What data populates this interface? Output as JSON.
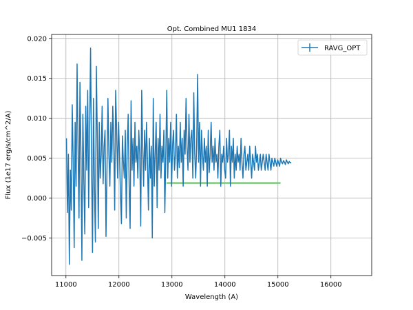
{
  "chart_data": {
    "type": "line",
    "title": "Opt. Combined MU1 1834",
    "xlabel": "Wavelength (A)",
    "ylabel": "Flux (1e17 erg/s/cm^2/A)",
    "xlim": [
      10730,
      16770
    ],
    "ylim": [
      -0.0097,
      0.0205
    ],
    "xticks": [
      11000,
      12000,
      13000,
      14000,
      15000,
      16000
    ],
    "yticks": [
      -0.005,
      0.0,
      0.005,
      0.01,
      0.015,
      0.02
    ],
    "xtick_labels": [
      "11000",
      "12000",
      "13000",
      "14000",
      "15000",
      "16000"
    ],
    "ytick_labels": [
      "−0.005",
      "0.000",
      "0.005",
      "0.010",
      "0.015",
      "0.020"
    ],
    "grid": true,
    "legend_position": "top-right",
    "series": [
      {
        "name": "RAVG_OPT",
        "color": "#1f77b4",
        "x_start": 11010,
        "x_step": 18.2,
        "values": [
          0.0075,
          -0.0018,
          0.0055,
          -0.0083,
          0.0035,
          -0.0015,
          0.0117,
          0.0042,
          -0.0062,
          0.0095,
          0.0015,
          0.0168,
          0.0065,
          -0.0025,
          0.0145,
          0.0055,
          -0.0078,
          0.0105,
          0.0025,
          -0.0045,
          0.0115,
          0.0035,
          0.0135,
          -0.0012,
          0.0085,
          0.0188,
          0.0045,
          -0.0068,
          0.0125,
          0.0015,
          -0.0055,
          0.0165,
          0.0075,
          -0.0038,
          0.0095,
          0.0025,
          0.0055,
          0.0115,
          0.0018,
          0.0065,
          0.0085,
          -0.0048,
          0.0035,
          0.0125,
          0.0055,
          0.0015,
          0.0095,
          0.0045,
          0.0115,
          0.0075,
          -0.0015,
          0.0135,
          0.0085,
          0.0025,
          0.0095,
          0.0055,
          0.0005,
          -0.0032,
          0.0078,
          0.0045,
          0.0025,
          0.0085,
          -0.0025,
          0.0065,
          0.0105,
          0.0015,
          -0.0038,
          0.0122,
          0.0035,
          0.0075,
          0.0015,
          0.0095,
          0.0045,
          0.0065,
          0.0025,
          0.0085,
          0.0055,
          -0.0035,
          0.0135,
          0.0065,
          0.0015,
          0.0085,
          0.0035,
          0.0095,
          0.0045,
          -0.0015,
          0.0075,
          0.0025,
          0.0065,
          -0.005,
          0.0125,
          0.0015,
          0.0055,
          0.0095,
          -0.0012,
          0.0075,
          0.0035,
          0.0105,
          0.0025,
          0.0065,
          0.0045,
          0.0085,
          -0.0018,
          0.0055,
          0.0135,
          0.0025,
          0.0075,
          0.0045,
          0.0095,
          0.0015,
          0.0065,
          0.0085,
          0.0035,
          0.0055,
          0.0105,
          0.0025,
          0.0065,
          0.0038,
          0.0095,
          0.0045,
          0.0075,
          0.0015,
          0.0085,
          0.0055,
          0.0125,
          0.0065,
          0.0035,
          0.0105,
          0.0045,
          0.0075,
          0.0085,
          0.0025,
          0.0132,
          0.0055,
          0.0025,
          0.0065,
          0.0155,
          0.0045,
          0.0095,
          0.0015,
          0.0085,
          0.0055,
          0.0035,
          0.0075,
          0.0045,
          0.0065,
          0.0015,
          0.0085,
          0.0032,
          0.0055,
          0.0095,
          0.0045,
          0.0065,
          0.0035,
          0.0075,
          0.0045,
          0.0055,
          0.0025,
          0.0065,
          0.0085,
          0.0015,
          0.0055,
          0.0045,
          0.0065,
          0.0035,
          0.0025,
          0.0075,
          0.0045,
          0.0055,
          0.0085,
          0.0015,
          0.0065,
          0.0045,
          0.0075,
          0.0025,
          0.0055,
          0.0035,
          0.0065,
          0.0045,
          0.0055,
          0.0035,
          0.0075,
          0.0045,
          0.0025,
          0.0055,
          0.0065,
          0.0035,
          0.0045,
          0.0055,
          0.0035,
          0.0065,
          0.0045,
          0.0025,
          0.0055,
          0.0045,
          0.0035,
          0.0065,
          0.0045,
          0.0055,
          0.0035,
          0.0045,
          0.0055,
          0.0035,
          0.0045,
          0.0055,
          0.0045,
          0.0035,
          0.0055,
          0.0045,
          0.0035,
          0.0055,
          0.0045,
          0.0035,
          0.005,
          0.0045,
          0.004,
          0.005,
          0.0045,
          0.004,
          0.0048,
          0.0044,
          0.004,
          0.005,
          0.0045,
          0.0043,
          0.0047,
          0.0045,
          0.0042,
          0.0048,
          0.0045,
          0.0043,
          0.0046,
          0.0044,
          0.0045
        ]
      },
      {
        "name": "",
        "color": "#7fc97f",
        "x": [
          12900,
          15050
        ],
        "values": [
          0.0019,
          0.0019
        ]
      }
    ]
  }
}
